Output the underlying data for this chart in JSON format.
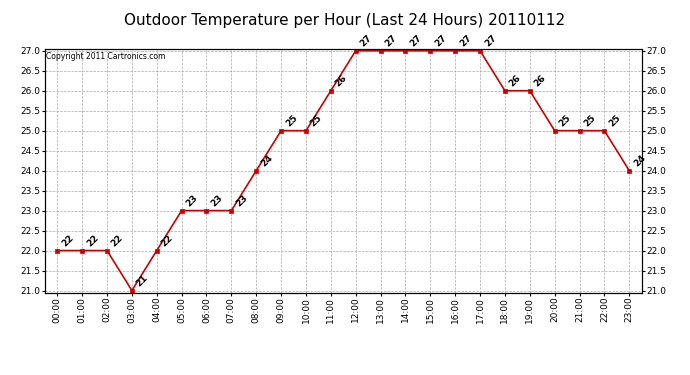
{
  "title": "Outdoor Temperature per Hour (Last 24 Hours) 20110112",
  "copyright_text": "Copyright 2011 Cartronics.com",
  "hours": [
    "00:00",
    "01:00",
    "02:00",
    "03:00",
    "04:00",
    "05:00",
    "06:00",
    "07:00",
    "08:00",
    "09:00",
    "10:00",
    "11:00",
    "12:00",
    "13:00",
    "14:00",
    "15:00",
    "16:00",
    "17:00",
    "18:00",
    "19:00",
    "20:00",
    "21:00",
    "22:00",
    "23:00"
  ],
  "temperatures": [
    22,
    22,
    22,
    21,
    22,
    23,
    23,
    23,
    24,
    25,
    25,
    26,
    27,
    27,
    27,
    27,
    27,
    27,
    26,
    26,
    25,
    25,
    25,
    24
  ],
  "line_color": "#cc0000",
  "marker_color": "#cc0000",
  "bg_color": "#ffffff",
  "grid_color": "#aaaaaa",
  "ylim_min": 21.0,
  "ylim_max": 27.0,
  "ytick_step": 0.5,
  "title_fontsize": 11,
  "tick_fontsize": 6.5,
  "annotation_fontsize": 6.5
}
